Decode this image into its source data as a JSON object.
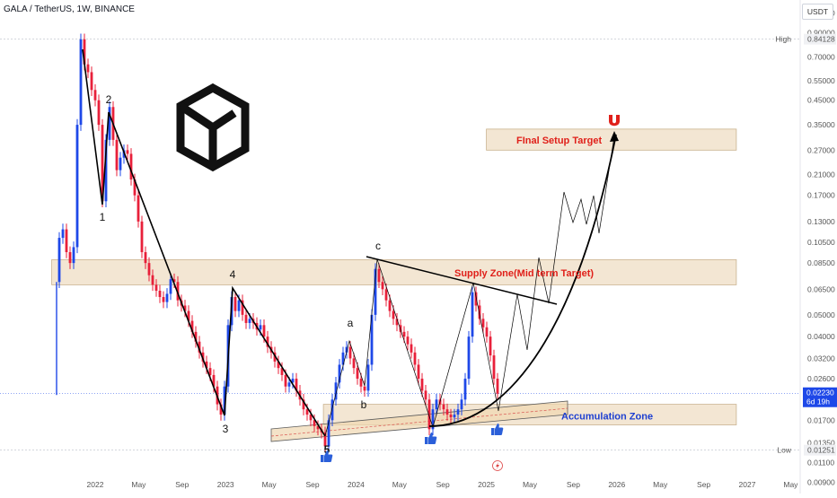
{
  "header": {
    "symbol": "GALA / TetherUS, 1W, BINANCE",
    "currency": "USDT"
  },
  "colors": {
    "up": "#1e48e8",
    "down": "#e8203a",
    "zone_fill": "#f3e6d3",
    "zone_stroke": "#c9b28f",
    "wave": "#000000",
    "accent_red": "#e0201a",
    "accent_blue": "#1d3fd1"
  },
  "chart_data": {
    "type": "candlestick",
    "scale": "log",
    "ylim": [
      0.0084,
      1.2
    ],
    "y_ticks": [
      "1.10000",
      "0.90000",
      "0.84128",
      "0.70000",
      "0.55000",
      "0.45000",
      "0.35000",
      "0.27000",
      "0.21000",
      "0.17000",
      "0.13000",
      "0.10500",
      "0.08500",
      "0.06500",
      "0.05000",
      "0.04000",
      "0.03200",
      "0.02600",
      "0.02230",
      "0.01700",
      "0.01350",
      "0.01251",
      "0.01100",
      "0.00900"
    ],
    "x_ticks": [
      "2022",
      "May",
      "Sep",
      "2023",
      "May",
      "Sep",
      "2024",
      "May",
      "Sep",
      "2025",
      "May",
      "Sep",
      "2026",
      "May",
      "Sep",
      "2027",
      "May"
    ],
    "price_labels": [
      {
        "tag": "High",
        "value": "0.84128",
        "price": 0.84128
      },
      {
        "tag": "Low",
        "value": "0.01251",
        "price": 0.01251
      }
    ],
    "last_price": {
      "value": "0.02230",
      "countdown": "6d 19h",
      "price": 0.0223
    },
    "zones": [
      {
        "name": "Final Setup Target",
        "label": "FInal Setup Target",
        "price_low": 0.27,
        "price_high": 0.335,
        "date_from": "2025-01",
        "date_to": "2026-12"
      },
      {
        "name": "Supply Zone",
        "label": "Supply Zone(Mid term Target)",
        "price_low": 0.068,
        "price_high": 0.088,
        "date_from": "2021-09",
        "date_to": "2026-12"
      },
      {
        "name": "Accumulation Zone",
        "label": "Accumulation Zone",
        "price_low": 0.0162,
        "price_high": 0.02,
        "date_from": "2023-10",
        "date_to": "2026-12"
      }
    ],
    "wave_labels": [
      "2",
      "1",
      "4",
      "3",
      "5",
      "a",
      "b",
      "c"
    ],
    "series": [
      {
        "name": "candles",
        "ohlc_note": "weekly OHLC approximated from chart",
        "values": []
      }
    ]
  }
}
